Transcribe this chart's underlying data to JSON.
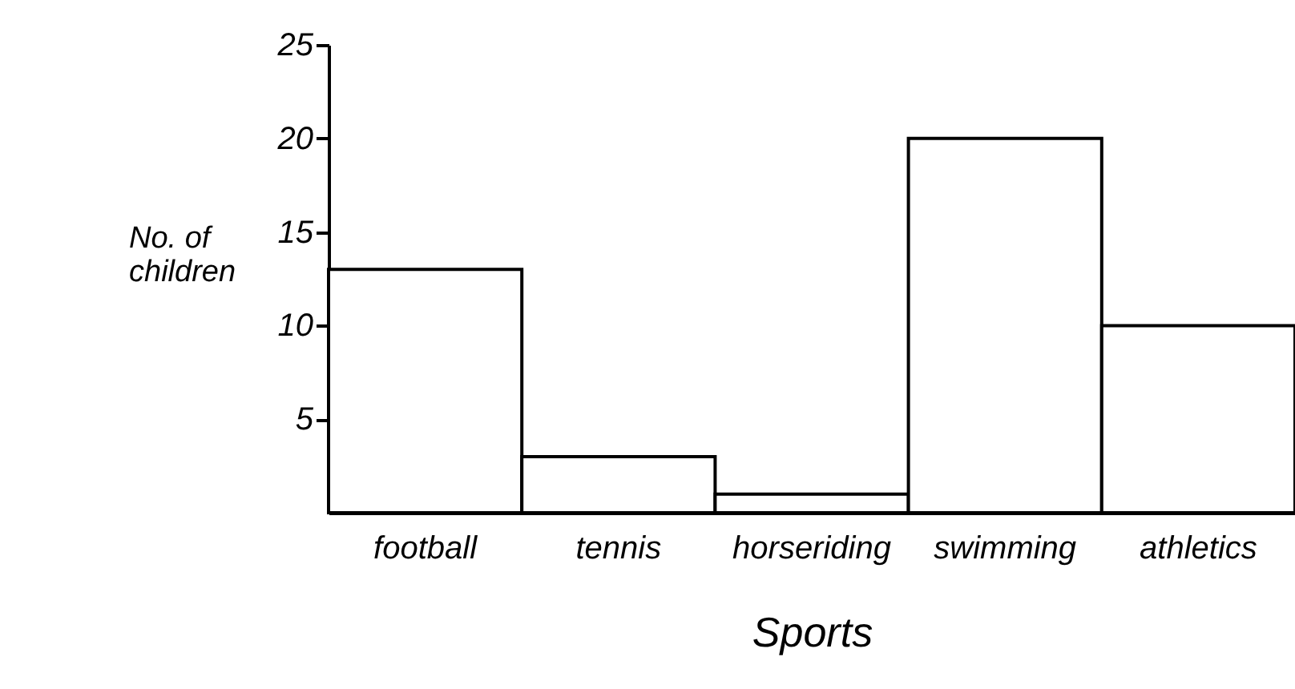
{
  "chart_data": {
    "type": "bar",
    "xlabel": "Sports",
    "ylabel": "No. of children",
    "categories": [
      "football",
      "tennis",
      "horseriding",
      "swimming",
      "athletics"
    ],
    "values": [
      13,
      3,
      1,
      20,
      10
    ],
    "color": "#ffffff",
    "ylim": [
      0,
      25
    ],
    "yticks": [
      5,
      10,
      15,
      20,
      25
    ],
    "grid": false
  }
}
